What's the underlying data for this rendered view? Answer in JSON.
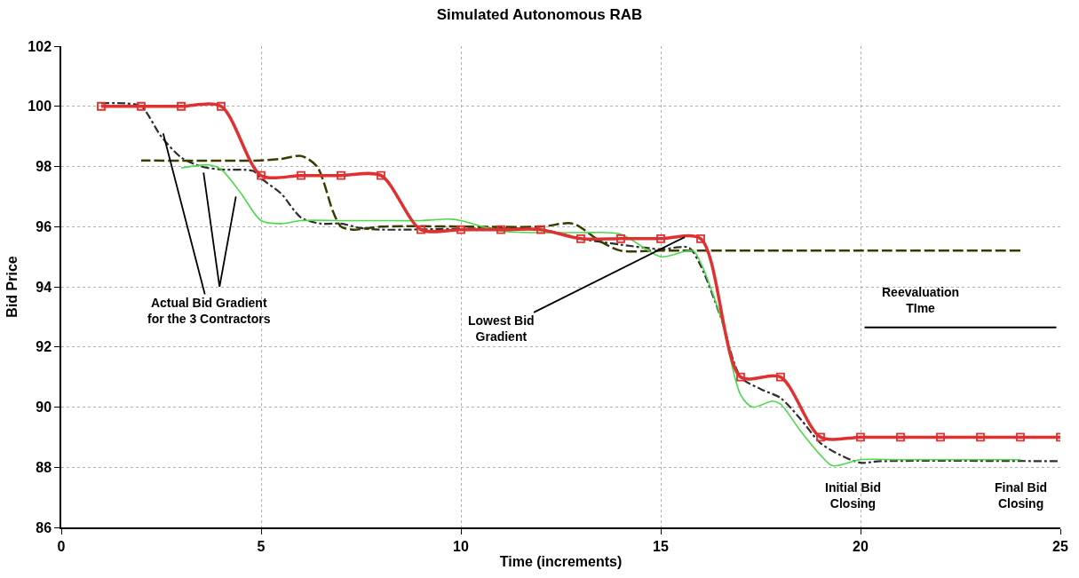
{
  "chart_data": {
    "type": "line",
    "title": "Simulated Autonomous RAB",
    "xlabel": "Time (increments)",
    "ylabel": "Bid Price",
    "xlim": [
      0,
      25
    ],
    "xticks": [
      0,
      5,
      10,
      15,
      20,
      25
    ],
    "ylim": [
      86,
      102
    ],
    "yticks": [
      86,
      88,
      90,
      92,
      94,
      96,
      98,
      100,
      102
    ],
    "grid": true,
    "series": [
      {
        "color": "#2e2e2e",
        "line_style": "dashdot",
        "marker": "none",
        "x": [
          1,
          1.6,
          2,
          2.5,
          3,
          3.5,
          4,
          4.8,
          5,
          5.5,
          6,
          6.5,
          7,
          7.5,
          8,
          12,
          13,
          14,
          15,
          15.7,
          16,
          16.5,
          17,
          17.5,
          18,
          18.5,
          19,
          19.5,
          20,
          20.5,
          25
        ],
        "values": [
          100.1,
          100.1,
          100,
          99,
          98.3,
          98,
          97.9,
          97.85,
          97.6,
          97.1,
          96.3,
          96.1,
          96.1,
          95.95,
          95.9,
          95.9,
          95.6,
          95.4,
          95.25,
          95.3,
          94.7,
          93,
          91,
          90.6,
          90.3,
          89.6,
          88.8,
          88.4,
          88.15,
          88.2,
          88.2
        ]
      },
      {
        "color": "#3a3a00",
        "line_style": "dashed",
        "marker": "none",
        "x": [
          24,
          15,
          14,
          13.5,
          12.8,
          12,
          8,
          7.3,
          7,
          6.8,
          6.4,
          6,
          5.5,
          5,
          2
        ],
        "values": [
          95.2,
          95.2,
          95.2,
          95.5,
          96.1,
          96,
          96,
          95.9,
          96,
          96.5,
          98,
          98.35,
          98.25,
          98.2,
          98.2
        ]
      },
      {
        "color": "#4cd94c",
        "line_style": "solid",
        "marker": "none",
        "x": [
          3,
          3.7,
          4,
          4.5,
          5,
          5.5,
          6,
          7,
          8,
          9,
          9.7,
          10,
          11,
          12,
          13,
          14,
          15,
          15.8,
          16,
          16.5,
          17,
          17.3,
          17.8,
          18,
          18.5,
          19,
          19.3,
          20,
          21,
          24
        ],
        "values": [
          97.95,
          98.05,
          97.9,
          97.1,
          96.2,
          96.1,
          96.2,
          96.2,
          96.2,
          96.2,
          96.25,
          96.2,
          95.85,
          95.8,
          95.8,
          95.75,
          95,
          95.2,
          94.8,
          93,
          90.4,
          90,
          90.2,
          90.1,
          89.2,
          88.4,
          88.05,
          88.25,
          88.25,
          88.25
        ]
      },
      {
        "color": "#e03030",
        "line_style": "solid",
        "marker": "square",
        "x": [
          1,
          2,
          3,
          4,
          5,
          6,
          7,
          8,
          9,
          10,
          11,
          12,
          13,
          14,
          15,
          16,
          17,
          18,
          19,
          20,
          21,
          22,
          23,
          24,
          25
        ],
        "values": [
          100,
          100,
          100,
          100,
          97.7,
          97.7,
          97.7,
          97.7,
          95.9,
          95.9,
          95.9,
          95.9,
          95.6,
          95.6,
          95.6,
          95.6,
          91,
          91,
          89,
          89,
          89,
          89,
          89,
          89,
          89
        ]
      }
    ],
    "annotations": [
      {
        "text": "Actual Bid Gradient\nfor the 3 Contractors",
        "x": 2.55,
        "y": 99.1
      },
      {
        "text": "Lowest Bid\nGradient",
        "x": 15.6,
        "y": 95.65
      },
      "Initial Bid\nClosing",
      "Final Bid\nClosing"
    ],
    "ref_lines": [
      {
        "axis": "y",
        "value": 92.65,
        "label": "Reevaluation\nTIme"
      }
    ]
  }
}
